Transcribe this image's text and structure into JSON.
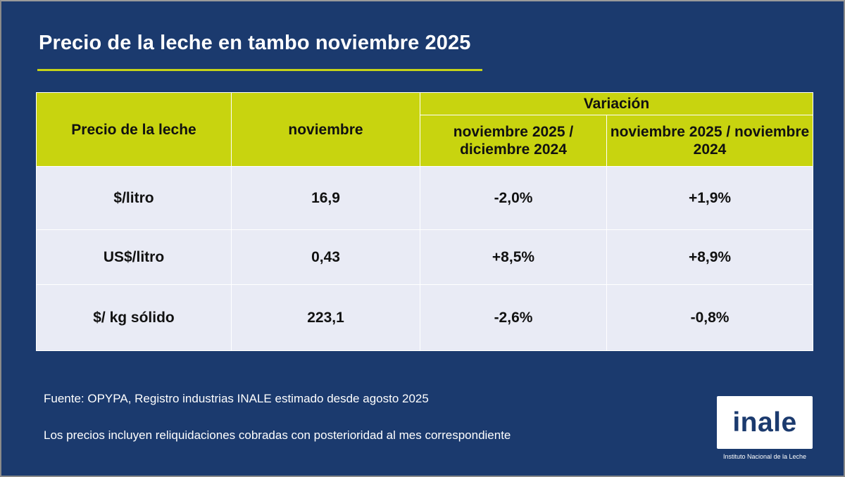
{
  "title": "Precio de la leche en tambo noviembre 2025",
  "colors": {
    "background": "#1b3a6e",
    "accent": "#c5d218",
    "header_fill": "#c8d40f",
    "body_fill": "#e9ebf5"
  },
  "table": {
    "header": {
      "col_label": "Precio de la leche",
      "col_month": "noviembre",
      "variation_label": "Variación",
      "variation_col_1": "noviembre 2025 / diciembre 2024",
      "variation_col_2": "noviembre 2025 / noviembre 2024"
    },
    "rows": [
      {
        "label": "$/litro",
        "value": "16,9",
        "var_1": "-2,0%",
        "var_2": "+1,9%"
      },
      {
        "label": "US$/litro",
        "value": "0,43",
        "var_1": "+8,5%",
        "var_2": "+8,9%"
      },
      {
        "label": "$/ kg sólido",
        "value": "223,1",
        "var_1": "-2,6%",
        "var_2": "-0,8%"
      }
    ]
  },
  "notes": {
    "source": "Fuente: OPYPA, Registro industrias INALE estimado desde agosto 2025",
    "disclaimer": "Los precios incluyen reliquidaciones cobradas con posterioridad al mes correspondiente"
  },
  "logo": {
    "text": "inale",
    "caption": "Instituto Nacional de la Leche"
  }
}
